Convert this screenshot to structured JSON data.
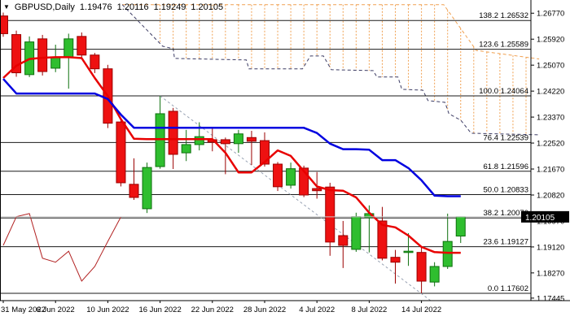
{
  "title": {
    "symbol": "GBPUSD,Daily",
    "open": "1.19476",
    "high": "1.20116",
    "low": "1.19249",
    "close": "1.20105"
  },
  "colors": {
    "background": "#FFFFFF",
    "bull_fill": "#2FBE2F",
    "bull_border": "#0E700E",
    "bear_fill": "#EE1111",
    "bear_border": "#9B0000",
    "tenkan_line": "#E80000",
    "kijun_line": "#0000E0",
    "chikou_line": "#B22222",
    "cloud_hatch": "#F0A050",
    "cloud_border_upper": "#F0A050",
    "cloud_border_lower": "#3C3C64",
    "fib_line": "#1A1A1A",
    "trendline": "#98A2B3",
    "bid_line": "#C8C8C8",
    "bid_box": "#000000",
    "bid_text": "#FFFFFF",
    "axis_text": "#000000",
    "axis_line": "#000000"
  },
  "chart_data": {
    "type": "candlestick",
    "symbol": "GBPUSD",
    "timeframe": "Daily",
    "title": "GBPUSD,Daily  O 1.19476  H 1.20116  L 1.19249  C 1.20105",
    "legend_position": "none",
    "grid": false,
    "y_axis_labels": [
      "1.26770",
      "1.25920",
      "1.25070",
      "1.24220",
      "1.23370",
      "1.22520",
      "1.21670",
      "1.20820",
      "1.19970",
      "1.19120",
      "1.18270",
      "1.17445"
    ],
    "x_labels": [
      {
        "index": 0,
        "text": "31 May 2022"
      },
      {
        "index": 4,
        "text": "6 Jun 2022"
      },
      {
        "index": 8,
        "text": "10 Jun 2022"
      },
      {
        "index": 12,
        "text": "16 Jun 2022"
      },
      {
        "index": 16,
        "text": "22 Jun 2022"
      },
      {
        "index": 20,
        "text": "28 Jun 2022"
      },
      {
        "index": 24,
        "text": "4 Jul 2022"
      },
      {
        "index": 28,
        "text": "8 Jul 2022"
      },
      {
        "index": 32,
        "text": "14 Jul 2022"
      }
    ],
    "candles_ohlc": [
      [
        1.2668,
        1.2679,
        1.26,
        1.261
      ],
      [
        1.2607,
        1.262,
        1.2469,
        1.2482
      ],
      [
        1.2476,
        1.2601,
        1.2468,
        1.2583
      ],
      [
        1.2593,
        1.2606,
        1.2473,
        1.2486
      ],
      [
        1.2497,
        1.2574,
        1.2484,
        1.2534
      ],
      [
        1.2534,
        1.261,
        1.243,
        1.2593
      ],
      [
        1.2601,
        1.2614,
        1.2526,
        1.254
      ],
      [
        1.254,
        1.2547,
        1.2481,
        1.2495
      ],
      [
        1.2495,
        1.2508,
        1.2301,
        1.2317
      ],
      [
        1.2321,
        1.2331,
        1.211,
        1.2122
      ],
      [
        1.2117,
        1.2202,
        1.2066,
        1.2074
      ],
      [
        1.2037,
        1.2188,
        1.2023,
        1.2172
      ],
      [
        1.2175,
        1.24064,
        1.2168,
        1.2348
      ],
      [
        1.2356,
        1.2367,
        1.2167,
        1.2215
      ],
      [
        1.222,
        1.2295,
        1.2193,
        1.2247
      ],
      [
        1.2247,
        1.232,
        1.2228,
        1.2273
      ],
      [
        1.2263,
        1.23,
        1.2225,
        1.2255
      ],
      [
        1.2263,
        1.227,
        1.215,
        1.225
      ],
      [
        1.225,
        1.2295,
        1.222,
        1.2282
      ],
      [
        1.227,
        1.2292,
        1.218,
        1.2258
      ],
      [
        1.226,
        1.2287,
        1.2175,
        1.2183
      ],
      [
        1.2183,
        1.219,
        1.2095,
        1.2109
      ],
      [
        1.2114,
        1.2188,
        1.2103,
        1.2168
      ],
      [
        1.217,
        1.2178,
        1.2075,
        1.2082
      ],
      [
        1.2103,
        1.2157,
        1.207,
        1.2096
      ],
      [
        1.2108,
        1.2122,
        1.1883,
        1.1928
      ],
      [
        1.1949,
        1.1997,
        1.1843,
        1.1917
      ],
      [
        1.1904,
        1.2024,
        1.1896,
        1.2011
      ],
      [
        1.2008,
        1.2048,
        1.1894,
        1.2021
      ],
      [
        1.1997,
        1.2043,
        1.1868,
        1.1875
      ],
      [
        1.1878,
        1.1902,
        1.1792,
        1.1862
      ],
      [
        1.1894,
        1.1957,
        1.185,
        1.1898
      ],
      [
        1.1894,
        1.191,
        1.17602,
        1.18
      ],
      [
        1.1797,
        1.1862,
        1.1783,
        1.1848
      ],
      [
        1.1848,
        1.2021,
        1.184,
        1.193
      ],
      [
        1.19476,
        1.20116,
        1.19249,
        1.20105
      ]
    ],
    "ichimoku": {
      "tenkan_sen": [
        1.2465,
        1.2505,
        1.2527,
        1.2531,
        1.2533,
        1.2533,
        1.253,
        1.2465,
        1.2406,
        1.233,
        1.2266,
        1.2265,
        1.2265,
        1.2265,
        1.2265,
        1.2265,
        1.2265,
        1.222,
        1.2156,
        1.2156,
        1.219,
        1.2228,
        1.221,
        1.216,
        1.211,
        1.2098,
        1.2096,
        1.2074,
        1.2024,
        1.1984,
        1.1976,
        1.1949,
        1.1912,
        1.1895,
        1.1893,
        1.1893
      ],
      "kijun_sen": [
        1.2462,
        1.2414,
        1.2414,
        1.2414,
        1.2414,
        1.2414,
        1.2414,
        1.2414,
        1.2396,
        1.2345,
        1.2302,
        1.2302,
        1.2302,
        1.2302,
        1.2302,
        1.2302,
        1.2302,
        1.2302,
        1.2302,
        1.2302,
        1.2302,
        1.2302,
        1.2302,
        1.2302,
        1.2285,
        1.225,
        1.2232,
        1.2232,
        1.223,
        1.2196,
        1.2196,
        1.217,
        1.213,
        1.208,
        1.2078,
        1.2078
      ],
      "chikou_shift": 26,
      "senkou_upper_points": [
        [
          9.1,
          1.2705
        ],
        [
          33.7,
          1.2705
        ],
        [
          36.2,
          1.2555
        ],
        [
          41.0,
          1.2527
        ]
      ],
      "senkou_lower_points": [
        [
          9.1,
          1.2705
        ],
        [
          12.2,
          1.2569
        ],
        [
          13.0,
          1.2561
        ],
        [
          13.1,
          1.2529
        ],
        [
          18.6,
          1.2524
        ],
        [
          18.8,
          1.2495
        ],
        [
          22.9,
          1.2495
        ],
        [
          23.5,
          1.2537
        ],
        [
          24.5,
          1.2537
        ],
        [
          25.1,
          1.2492
        ],
        [
          28.3,
          1.2489
        ],
        [
          28.6,
          1.2468
        ],
        [
          30.2,
          1.2468
        ],
        [
          30.5,
          1.2428
        ],
        [
          32.1,
          1.2425
        ],
        [
          32.5,
          1.2391
        ],
        [
          33.8,
          1.2385
        ],
        [
          34.1,
          1.2348
        ],
        [
          35.0,
          1.2327
        ],
        [
          35.8,
          1.2284
        ],
        [
          41.0,
          1.2279
        ]
      ]
    },
    "fibonacci_levels": [
      {
        "level": 138.2,
        "price": 1.26532,
        "text": "138.2 1.26532"
      },
      {
        "level": 123.6,
        "price": 1.25589,
        "text": "123.6 1.25589"
      },
      {
        "level": 100.0,
        "price": 1.24064,
        "text": "100.0 1.24064"
      },
      {
        "level": 76.4,
        "price": 1.22539,
        "text": "76.4 1.22539"
      },
      {
        "level": 61.8,
        "price": 1.21596,
        "text": "61.8 1.21596"
      },
      {
        "level": 50.0,
        "price": 1.20833,
        "text": "50.0 1.20833"
      },
      {
        "level": 38.2,
        "price": 1.2007,
        "text": "38.2 1.20070"
      },
      {
        "level": 23.6,
        "price": 1.19127,
        "text": "23.6 1.19127"
      },
      {
        "level": 0.0,
        "price": 1.17602,
        "text": "0.0 1.17602"
      }
    ],
    "trendline": {
      "from_index": 12.0,
      "from_price": 1.24064,
      "to_index": 33.2,
      "to_price": 1.172
    },
    "bid": {
      "price": 1.20105,
      "label": "1.20105"
    }
  }
}
